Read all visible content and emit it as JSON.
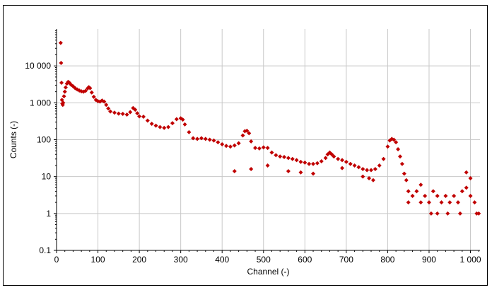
{
  "chart_data": {
    "type": "scatter",
    "title": "",
    "xlabel": "Channel (-)",
    "ylabel": "Counts (-)",
    "xlim": [
      0,
      1023
    ],
    "ylim": [
      0.1,
      100000
    ],
    "y_scale": "log",
    "grid": true,
    "legend": "none",
    "marker": "diamond",
    "color": "#c00000",
    "x_ticks": [
      0,
      100,
      200,
      300,
      400,
      500,
      600,
      700,
      800,
      900,
      1000
    ],
    "x_tick_labels": [
      "0",
      "100",
      "200",
      "300",
      "400",
      "500",
      "600",
      "700",
      "800",
      "900",
      "1 000"
    ],
    "y_ticks": [
      0.1,
      1,
      10,
      100,
      1000,
      10000
    ],
    "y_tick_labels": [
      "0.1",
      "1",
      "10",
      "100",
      "1 000",
      "10 000"
    ],
    "series": [
      {
        "points": [
          [
            10,
            42000
          ],
          [
            11,
            12000
          ],
          [
            12,
            3500
          ],
          [
            13,
            1200
          ],
          [
            14,
            950
          ],
          [
            15,
            880
          ],
          [
            16,
            1000
          ],
          [
            18,
            1500
          ],
          [
            20,
            2000
          ],
          [
            22,
            2600
          ],
          [
            25,
            3300
          ],
          [
            28,
            3700
          ],
          [
            31,
            3500
          ],
          [
            35,
            3100
          ],
          [
            40,
            2800
          ],
          [
            45,
            2500
          ],
          [
            50,
            2300
          ],
          [
            55,
            2150
          ],
          [
            60,
            2050
          ],
          [
            65,
            2000
          ],
          [
            70,
            2100
          ],
          [
            75,
            2450
          ],
          [
            78,
            2650
          ],
          [
            81,
            2500
          ],
          [
            85,
            1900
          ],
          [
            90,
            1450
          ],
          [
            95,
            1200
          ],
          [
            100,
            1100
          ],
          [
            105,
            1080
          ],
          [
            110,
            1150
          ],
          [
            115,
            1080
          ],
          [
            120,
            880
          ],
          [
            125,
            700
          ],
          [
            130,
            580
          ],
          [
            140,
            540
          ],
          [
            150,
            510
          ],
          [
            160,
            500
          ],
          [
            170,
            480
          ],
          [
            178,
            560
          ],
          [
            185,
            720
          ],
          [
            190,
            650
          ],
          [
            195,
            520
          ],
          [
            200,
            430
          ],
          [
            210,
            420
          ],
          [
            220,
            330
          ],
          [
            230,
            270
          ],
          [
            240,
            240
          ],
          [
            250,
            220
          ],
          [
            260,
            210
          ],
          [
            270,
            220
          ],
          [
            280,
            280
          ],
          [
            290,
            360
          ],
          [
            300,
            380
          ],
          [
            305,
            350
          ],
          [
            310,
            260
          ],
          [
            320,
            160
          ],
          [
            330,
            110
          ],
          [
            340,
            105
          ],
          [
            350,
            110
          ],
          [
            360,
            105
          ],
          [
            370,
            100
          ],
          [
            380,
            95
          ],
          [
            390,
            85
          ],
          [
            400,
            75
          ],
          [
            410,
            68
          ],
          [
            420,
            65
          ],
          [
            430,
            70
          ],
          [
            440,
            80
          ],
          [
            450,
            130
          ],
          [
            455,
            170
          ],
          [
            460,
            175
          ],
          [
            465,
            150
          ],
          [
            470,
            90
          ],
          [
            480,
            60
          ],
          [
            490,
            58
          ],
          [
            500,
            62
          ],
          [
            510,
            60
          ],
          [
            520,
            45
          ],
          [
            530,
            38
          ],
          [
            540,
            35
          ],
          [
            550,
            34
          ],
          [
            560,
            32
          ],
          [
            570,
            30
          ],
          [
            580,
            28
          ],
          [
            590,
            25
          ],
          [
            600,
            24
          ],
          [
            610,
            22
          ],
          [
            620,
            22
          ],
          [
            630,
            23
          ],
          [
            640,
            26
          ],
          [
            650,
            32
          ],
          [
            655,
            40
          ],
          [
            660,
            45
          ],
          [
            665,
            40
          ],
          [
            670,
            35
          ],
          [
            680,
            30
          ],
          [
            690,
            28
          ],
          [
            700,
            25
          ],
          [
            710,
            22
          ],
          [
            720,
            20
          ],
          [
            730,
            18
          ],
          [
            740,
            16
          ],
          [
            750,
            15
          ],
          [
            760,
            15
          ],
          [
            770,
            16
          ],
          [
            780,
            20
          ],
          [
            790,
            30
          ],
          [
            800,
            65
          ],
          [
            805,
            95
          ],
          [
            810,
            105
          ],
          [
            815,
            100
          ],
          [
            820,
            85
          ],
          [
            825,
            55
          ],
          [
            830,
            35
          ],
          [
            835,
            22
          ],
          [
            840,
            12
          ],
          [
            845,
            8
          ],
          [
            850,
            4
          ],
          [
            860,
            3
          ],
          [
            870,
            4
          ],
          [
            880,
            2
          ],
          [
            890,
            3
          ],
          [
            900,
            2
          ],
          [
            910,
            4
          ],
          [
            920,
            3
          ],
          [
            930,
            2
          ],
          [
            940,
            3
          ],
          [
            950,
            2
          ],
          [
            960,
            3
          ],
          [
            970,
            2
          ],
          [
            980,
            4
          ],
          [
            990,
            5
          ],
          [
            1000,
            3
          ],
          [
            1010,
            2
          ],
          [
            1020,
            1
          ],
          [
            430,
            14
          ],
          [
            470,
            16
          ],
          [
            510,
            20
          ],
          [
            560,
            14
          ],
          [
            590,
            13
          ],
          [
            620,
            12
          ],
          [
            690,
            17
          ],
          [
            740,
            10
          ],
          [
            755,
            9
          ],
          [
            765,
            8
          ],
          [
            850,
            2
          ],
          [
            880,
            6
          ],
          [
            905,
            1
          ],
          [
            920,
            1
          ],
          [
            945,
            1
          ],
          [
            975,
            1
          ],
          [
            990,
            13
          ],
          [
            1000,
            9
          ],
          [
            1015,
            1
          ]
        ]
      }
    ]
  }
}
